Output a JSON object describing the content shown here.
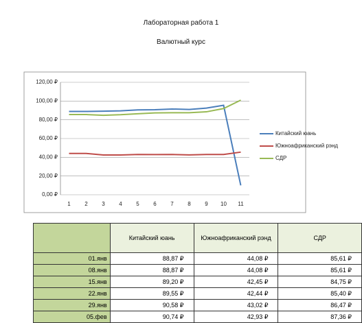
{
  "header": {
    "title": "Лабораторная работа 1",
    "subtitle": "Валютный курс"
  },
  "chart_data": {
    "type": "line",
    "categories": [
      "1",
      "2",
      "3",
      "4",
      "5",
      "6",
      "7",
      "8",
      "9",
      "10",
      "11"
    ],
    "series": [
      {
        "name": "Китайский юань",
        "color": "#4a7ebb",
        "values": [
          88.87,
          88.87,
          89.2,
          89.55,
          90.58,
          90.74,
          91.5,
          91.0,
          92.5,
          95.5,
          10
        ]
      },
      {
        "name": "Южноафриканский рэнд",
        "color": "#be4b48",
        "values": [
          44.08,
          44.08,
          42.45,
          42.44,
          43.02,
          42.93,
          43.0,
          42.5,
          43.0,
          43.0,
          45.5
        ]
      },
      {
        "name": "СДР",
        "color": "#98b954",
        "values": [
          85.61,
          85.61,
          84.75,
          85.4,
          86.47,
          87.36,
          87.5,
          87.5,
          88.5,
          92.0,
          101
        ]
      }
    ],
    "ylim": [
      0,
      120
    ],
    "yticks": [
      {
        "value": 0,
        "label": "0,00 ₽"
      },
      {
        "value": 20,
        "label": "20,00 ₽"
      },
      {
        "value": 40,
        "label": "40,00 ₽"
      },
      {
        "value": 60,
        "label": "60,00 ₽"
      },
      {
        "value": 80,
        "label": "80,00 ₽"
      },
      {
        "value": 100,
        "label": "100,00 ₽"
      },
      {
        "value": 120,
        "label": "120,00 ₽"
      }
    ],
    "grid": true,
    "legend": "right"
  },
  "table": {
    "columns": [
      "Китайский юань",
      "Южноафриканский рэнд",
      "СДР"
    ],
    "rows": [
      [
        "01.янв",
        "88,87 ₽",
        "44,08 ₽",
        "85,61 ₽"
      ],
      [
        "08.янв",
        "88,87 ₽",
        "44,08 ₽",
        "85,61 ₽"
      ],
      [
        "15.янв",
        "89,20 ₽",
        "42,45 ₽",
        "84,75 ₽"
      ],
      [
        "22.янв",
        "89,55 ₽",
        "42,44 ₽",
        "85,40 ₽"
      ],
      [
        "29.янв",
        "90,58 ₽",
        "43,02 ₽",
        "86,47 ₽"
      ],
      [
        "05.фев",
        "90,74 ₽",
        "42,93 ₽",
        "87,36 ₽"
      ]
    ]
  }
}
